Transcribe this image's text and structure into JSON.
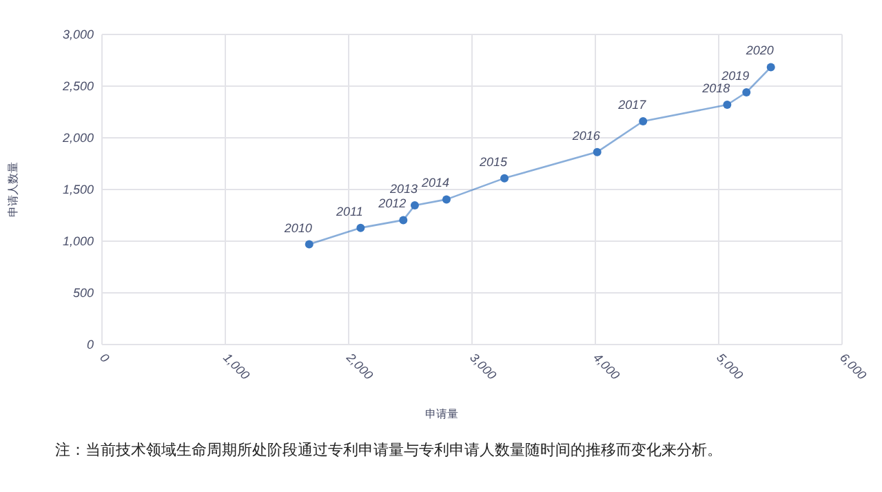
{
  "chart_data": {
    "type": "line",
    "xlabel": "申请量",
    "ylabel": "申请人数量",
    "x": [
      1680,
      2097,
      2443,
      2536,
      2793,
      3263,
      4015,
      4387,
      5069,
      5225,
      5423
    ],
    "series": [
      {
        "color": "#3a78c2",
        "values": [
          970,
          1129,
          1204,
          1347,
          1404,
          1609,
          1862,
          2160,
          2320,
          2440,
          2684
        ]
      }
    ],
    "xlim": [
      0,
      6000
    ],
    "xticks": [
      {
        "value": 0,
        "label": "0"
      },
      {
        "value": 1000,
        "label": "1,000"
      },
      {
        "value": 2000,
        "label": "2,000"
      },
      {
        "value": 3000,
        "label": "3,000"
      },
      {
        "value": 4000,
        "label": "4,000"
      },
      {
        "value": 5000,
        "label": "5,000"
      },
      {
        "value": 6000,
        "label": "6,000"
      }
    ],
    "ylim": [
      0,
      3000
    ],
    "yticks": [
      {
        "value": 0,
        "label": "0"
      },
      {
        "value": 500,
        "label": "500"
      },
      {
        "value": 1000,
        "label": "1,000"
      },
      {
        "value": 1500,
        "label": "1,500"
      },
      {
        "value": 2000,
        "label": "2,000"
      },
      {
        "value": 2500,
        "label": "2,500"
      },
      {
        "value": 3000,
        "label": "3,000"
      }
    ],
    "grid": true,
    "marker": "circle",
    "line_style": "solid",
    "annotations": [
      {
        "text": "2010",
        "x": 1680,
        "y": 970
      },
      {
        "text": "2011",
        "x": 2097,
        "y": 1129
      },
      {
        "text": "2012",
        "x": 2443,
        "y": 1204
      },
      {
        "text": "2013",
        "x": 2536,
        "y": 1347
      },
      {
        "text": "2014",
        "x": 2793,
        "y": 1404
      },
      {
        "text": "2015",
        "x": 3263,
        "y": 1609
      },
      {
        "text": "2016",
        "x": 4015,
        "y": 1862
      },
      {
        "text": "2017",
        "x": 4387,
        "y": 2160
      },
      {
        "text": "2018",
        "x": 5069,
        "y": 2320
      },
      {
        "text": "2019",
        "x": 5225,
        "y": 2440
      },
      {
        "text": "2020",
        "x": 5423,
        "y": 2684
      },
      "注：当前技术领域生命周期所处阶段通过专利申请量与专利申请人数量随时间的推移而变化来分析。"
    ]
  }
}
